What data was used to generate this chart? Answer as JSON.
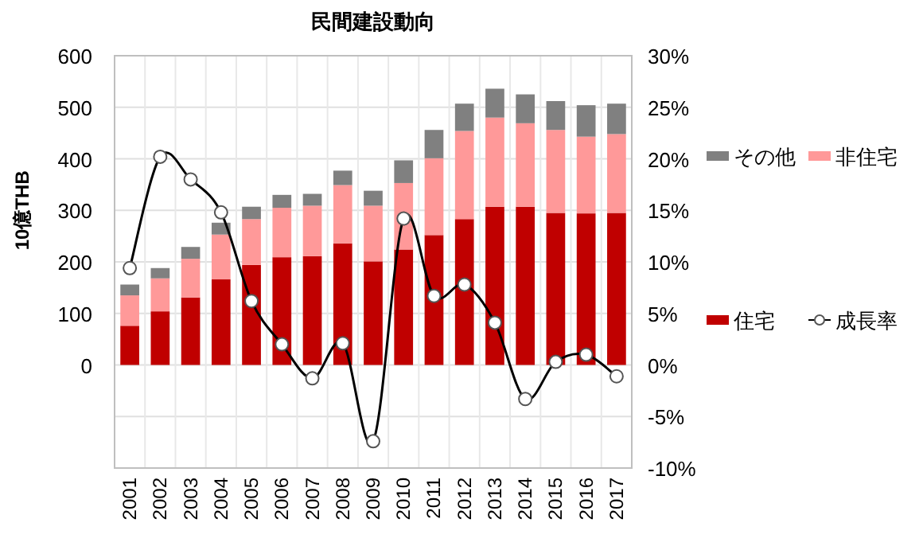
{
  "chart_data": {
    "type": "bar",
    "stacked": true,
    "title": "民間建設動向",
    "ylabel": "10億THB",
    "categories": [
      "2001",
      "2002",
      "2003",
      "2004",
      "2005",
      "2006",
      "2007",
      "2008",
      "2009",
      "2010",
      "2011",
      "2012",
      "2013",
      "2014",
      "2015",
      "2016",
      "2017"
    ],
    "series": [
      {
        "name": "住宅",
        "color": "#c00000",
        "values": [
          76,
          104,
          131,
          166,
          194,
          209,
          211,
          236,
          201,
          224,
          252,
          283,
          307,
          307,
          295,
          294,
          295
        ]
      },
      {
        "name": "非住宅",
        "color": "#ff9999",
        "values": [
          59,
          64,
          75,
          87,
          89,
          96,
          98,
          113,
          108,
          129,
          149,
          171,
          173,
          162,
          161,
          149,
          153
        ]
      },
      {
        "name": "その他",
        "color": "#808080",
        "values": [
          21,
          20,
          23,
          23,
          24,
          25,
          23,
          28,
          29,
          44,
          55,
          53,
          56,
          56,
          56,
          61,
          59
        ]
      },
      {
        "name": "成長率",
        "type": "line",
        "axis": "y2",
        "color": "#000000",
        "marker": "circle",
        "values": [
          9.4,
          20.2,
          18.0,
          14.8,
          6.2,
          2.0,
          -1.3,
          2.1,
          -7.4,
          14.2,
          6.7,
          7.8,
          4.1,
          -3.3,
          0.3,
          1.0,
          -1.1
        ]
      }
    ],
    "ylim": [
      -200,
      600
    ],
    "yticks": [
      {
        "value": -200,
        "label": null
      },
      {
        "value": -100,
        "label": null
      },
      0,
      100,
      200,
      300,
      400,
      500,
      600
    ],
    "y2lim": [
      -10,
      30
    ],
    "y2ticks": [
      {
        "value": -10,
        "label": "-10%"
      },
      {
        "value": -5,
        "label": "-5%"
      },
      {
        "value": 0,
        "label": "0%"
      },
      {
        "value": 5,
        "label": "5%"
      },
      {
        "value": 10,
        "label": "10%"
      },
      {
        "value": 15,
        "label": "15%"
      },
      {
        "value": 20,
        "label": "20%"
      },
      {
        "value": 25,
        "label": "25%"
      },
      {
        "value": 30,
        "label": "30%"
      }
    ],
    "grid": true,
    "legend": "right"
  }
}
